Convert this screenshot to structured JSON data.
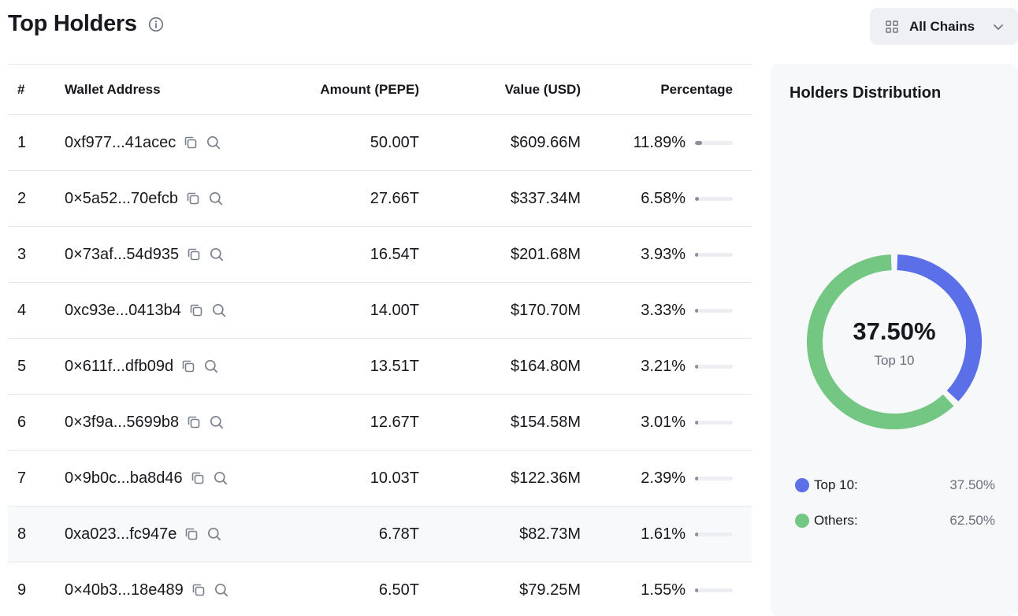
{
  "header": {
    "title": "Top Holders",
    "info_icon": "info-circle-icon"
  },
  "chain_selector": {
    "label": "All Chains",
    "icon": "grid-icon",
    "chevron": "chevron-down-icon"
  },
  "table": {
    "columns": [
      "#",
      "Wallet Address",
      "Amount (PEPE)",
      "Value (USD)",
      "Percentage"
    ],
    "rows": [
      {
        "rank": "1",
        "address": "0xf977...41acec",
        "amount": "50.00T",
        "value": "$609.66M",
        "percentage": "11.89%",
        "pct_num": 11.89
      },
      {
        "rank": "2",
        "address": "0×5a52...70efcb",
        "amount": "27.66T",
        "value": "$337.34M",
        "percentage": "6.58%",
        "pct_num": 6.58
      },
      {
        "rank": "3",
        "address": "0×73af...54d935",
        "amount": "16.54T",
        "value": "$201.68M",
        "percentage": "3.93%",
        "pct_num": 3.93
      },
      {
        "rank": "4",
        "address": "0xc93e...0413b4",
        "amount": "14.00T",
        "value": "$170.70M",
        "percentage": "3.33%",
        "pct_num": 3.33
      },
      {
        "rank": "5",
        "address": "0×611f...dfb09d",
        "amount": "13.51T",
        "value": "$164.80M",
        "percentage": "3.21%",
        "pct_num": 3.21
      },
      {
        "rank": "6",
        "address": "0×3f9a...5699b8",
        "amount": "12.67T",
        "value": "$154.58M",
        "percentage": "3.01%",
        "pct_num": 3.01
      },
      {
        "rank": "7",
        "address": "0×9b0c...ba8d46",
        "amount": "10.03T",
        "value": "$122.36M",
        "percentage": "2.39%",
        "pct_num": 2.39
      },
      {
        "rank": "8",
        "address": "0xa023...fc947e",
        "amount": "6.78T",
        "value": "$82.73M",
        "percentage": "1.61%",
        "pct_num": 1.61
      },
      {
        "rank": "9",
        "address": "0×40b3...18e489",
        "amount": "6.50T",
        "value": "$79.25M",
        "percentage": "1.55%",
        "pct_num": 1.55
      }
    ],
    "row_icons": [
      "copy-icon",
      "search-icon"
    ]
  },
  "distribution": {
    "title": "Holders Distribution",
    "center_value": "37.50%",
    "center_label": "Top 10",
    "segments": [
      {
        "label": "Top 10:",
        "value": "37.50%",
        "fraction": 0.375,
        "color": "#5b6fe8"
      },
      {
        "label": "Others:",
        "value": "62.50%",
        "fraction": 0.625,
        "color": "#74c783"
      }
    ]
  }
}
